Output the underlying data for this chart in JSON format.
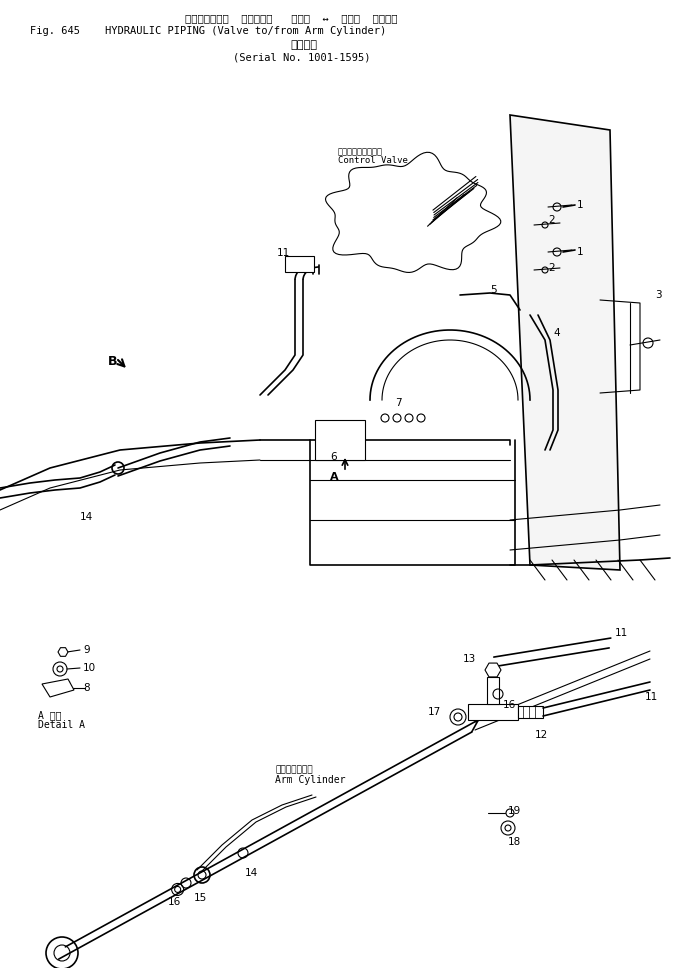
{
  "title_line1": "ハイドロリック  パイピング   バルブ  ↔  アーム  シリンダ",
  "title_line2": "Fig. 645    HYDRAULIC PIPING (Valve to/from Arm Cylinder)",
  "title_line3": "適用号機",
  "title_line4": "(Serial No. 1001-1595)",
  "cv_label1": "コントロールハルブ",
  "cv_label2": "Control Valve",
  "arm_cyl_label1": "アームシリンダ",
  "arm_cyl_label2": "Arm Cylinder",
  "detail_a_label1": "A 詳細",
  "detail_a_label2": "Detail A",
  "bg_color": "#ffffff",
  "line_color": "#000000",
  "fig_width": 6.73,
  "fig_height": 9.68,
  "dpi": 100
}
